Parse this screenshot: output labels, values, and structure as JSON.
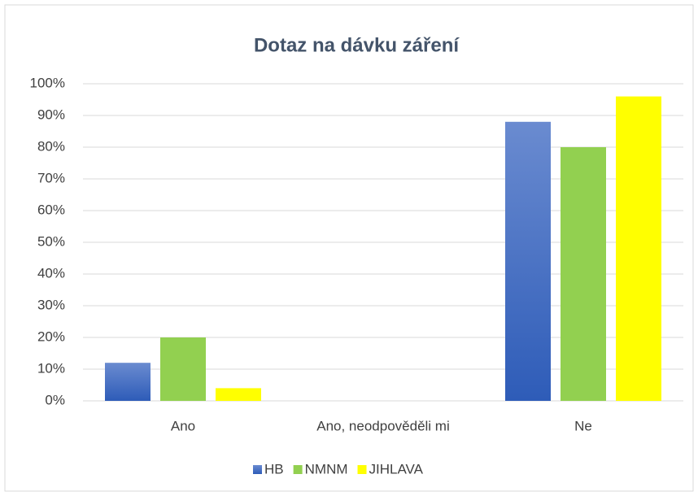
{
  "chart_data": {
    "type": "bar",
    "title": "Dotaz na dávku záření",
    "categories": [
      "Ano",
      "Ano, neodpověděli mi",
      "Ne"
    ],
    "series": [
      {
        "name": "HB",
        "color": "#4472c4",
        "values": [
          12,
          0,
          88
        ]
      },
      {
        "name": "NMNM",
        "color": "#92d050",
        "values": [
          20,
          0,
          80
        ]
      },
      {
        "name": "JIHLAVA",
        "color": "#ffff00",
        "values": [
          4,
          0,
          96
        ]
      }
    ],
    "ylim": [
      0,
      100
    ],
    "yticks": [
      {
        "value": 0,
        "label": "0%"
      },
      {
        "value": 10,
        "label": "10%"
      },
      {
        "value": 20,
        "label": "20%"
      },
      {
        "value": 30,
        "label": "30%"
      },
      {
        "value": 40,
        "label": "40%"
      },
      {
        "value": 50,
        "label": "50%"
      },
      {
        "value": 60,
        "label": "60%"
      },
      {
        "value": 70,
        "label": "70%"
      },
      {
        "value": 80,
        "label": "80%"
      },
      {
        "value": 90,
        "label": "90%"
      },
      {
        "value": 100,
        "label": "100%"
      }
    ],
    "grid": true,
    "legend": "bottom"
  }
}
